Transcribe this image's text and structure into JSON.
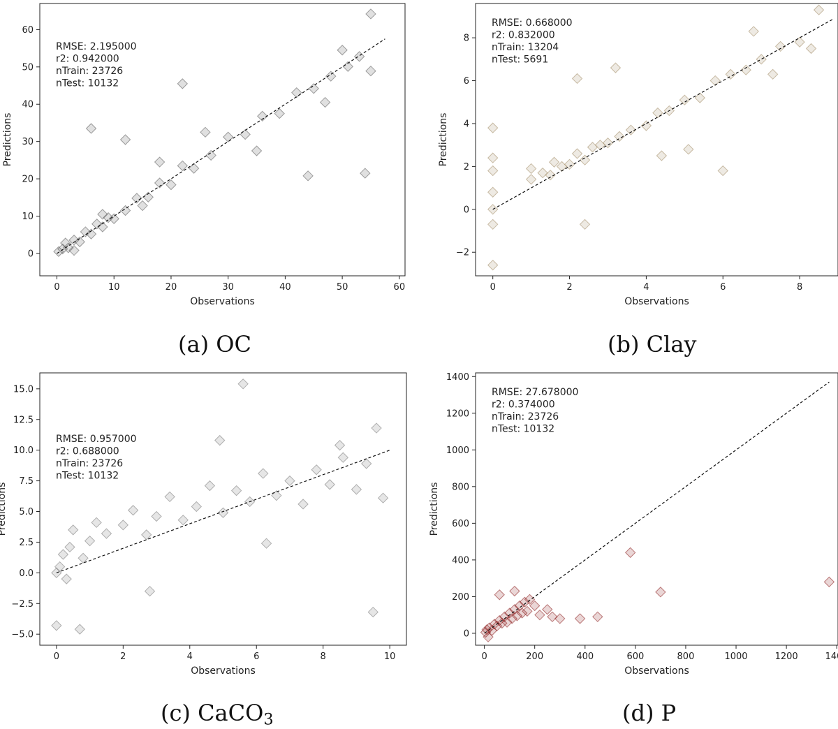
{
  "figure": {
    "captions": {
      "a": {
        "label": "(a) OC",
        "text": "(a) OC"
      },
      "b": {
        "label": "(b) Clay",
        "text": "(b) Clay"
      },
      "c": {
        "prefix": "(c) CaCO",
        "subscript": "3"
      },
      "d": {
        "label": "(d) P",
        "text": "(d) P"
      }
    }
  },
  "chart_data": [
    {
      "id": "a",
      "type": "scatter",
      "title": "",
      "xlabel": "Observations",
      "ylabel": "Predictions",
      "xlim": [
        -3,
        61
      ],
      "ylim": [
        -6,
        67
      ],
      "xticks": [
        0,
        10,
        20,
        30,
        40,
        50,
        60
      ],
      "yticks": [
        0,
        10,
        20,
        30,
        40,
        50,
        60
      ],
      "reference_line": {
        "from": [
          0,
          0
        ],
        "to": [
          57.5,
          57.5
        ],
        "style": "dashed"
      },
      "stats": [
        "RMSE: 2.195000",
        "r2: 0.942000",
        "nTrain: 23726",
        "nTest: 10132"
      ],
      "marker": "diamond",
      "marker_color": "#555555",
      "points": [
        [
          0.3,
          0.5
        ],
        [
          1,
          1.2
        ],
        [
          2,
          1.5
        ],
        [
          3,
          3.6
        ],
        [
          4,
          3.1
        ],
        [
          5,
          5.8
        ],
        [
          6,
          5.2
        ],
        [
          7,
          7.9
        ],
        [
          8,
          7.1
        ],
        [
          9,
          9.6
        ],
        [
          10,
          9.3
        ],
        [
          12,
          11.5
        ],
        [
          14,
          14.8
        ],
        [
          16,
          15.1
        ],
        [
          18,
          18.9
        ],
        [
          20,
          18.4
        ],
        [
          22,
          23.5
        ],
        [
          24,
          22.8
        ],
        [
          27,
          26.3
        ],
        [
          30,
          31.2
        ],
        [
          33,
          31.9
        ],
        [
          36,
          36.8
        ],
        [
          39,
          37.5
        ],
        [
          42,
          43.1
        ],
        [
          45,
          44.2
        ],
        [
          48,
          47.5
        ],
        [
          51,
          50.1
        ],
        [
          53,
          52.8
        ],
        [
          55,
          48.9
        ],
        [
          55,
          64.2
        ],
        [
          54,
          21.5
        ],
        [
          44,
          20.8
        ],
        [
          12,
          30.5
        ],
        [
          6,
          33.5
        ],
        [
          22,
          45.5
        ],
        [
          3,
          0.8
        ],
        [
          1.5,
          2.8
        ],
        [
          8,
          10.5
        ],
        [
          15,
          12.8
        ],
        [
          35,
          27.5
        ],
        [
          47,
          40.5
        ],
        [
          50,
          54.5
        ],
        [
          26,
          32.5
        ],
        [
          18,
          24.5
        ]
      ]
    },
    {
      "id": "b",
      "type": "scatter",
      "title": "",
      "xlabel": "Observations",
      "ylabel": "Predictions",
      "xlim": [
        -0.45,
        9.0
      ],
      "ylim": [
        -3.1,
        9.6
      ],
      "xticks": [
        0,
        2,
        4,
        6,
        8
      ],
      "yticks": [
        -2,
        0,
        2,
        4,
        6,
        8
      ],
      "reference_line": {
        "from": [
          0,
          0
        ],
        "to": [
          8.9,
          8.9
        ],
        "style": "dashed"
      },
      "stats": [
        "RMSE: 0.668000",
        "r2: 0.832000",
        "nTrain: 13204",
        "nTest: 5691"
      ],
      "marker": "diamond",
      "marker_color": "#a08a64",
      "points": [
        [
          0,
          0
        ],
        [
          0,
          0.8
        ],
        [
          0,
          -0.7
        ],
        [
          0,
          1.8
        ],
        [
          0,
          3.8
        ],
        [
          0,
          -2.6
        ],
        [
          0,
          2.4
        ],
        [
          1,
          1.4
        ],
        [
          1,
          1.9
        ],
        [
          1.3,
          1.7
        ],
        [
          1.5,
          1.6
        ],
        [
          1.6,
          2.2
        ],
        [
          1.8,
          2.0
        ],
        [
          2,
          2.1
        ],
        [
          2.2,
          2.6
        ],
        [
          2.4,
          2.3
        ],
        [
          2.6,
          2.9
        ],
        [
          2.8,
          3.0
        ],
        [
          3,
          3.1
        ],
        [
          3.3,
          3.4
        ],
        [
          3.6,
          3.7
        ],
        [
          4,
          3.9
        ],
        [
          4.3,
          4.5
        ],
        [
          4.6,
          4.6
        ],
        [
          5,
          5.1
        ],
        [
          5.4,
          5.2
        ],
        [
          5.8,
          6.0
        ],
        [
          6.2,
          6.3
        ],
        [
          6.6,
          6.5
        ],
        [
          7,
          7.0
        ],
        [
          7.5,
          7.6
        ],
        [
          8,
          7.8
        ],
        [
          8.5,
          9.3
        ],
        [
          8.3,
          7.5
        ],
        [
          2.2,
          6.1
        ],
        [
          3.2,
          6.6
        ],
        [
          6,
          1.8
        ],
        [
          5.1,
          2.8
        ],
        [
          2.4,
          -0.7
        ],
        [
          7.3,
          6.3
        ],
        [
          4.4,
          2.5
        ],
        [
          6.8,
          8.3
        ]
      ]
    },
    {
      "id": "c",
      "type": "scatter",
      "title": "",
      "xlabel": "Observations",
      "ylabel": "Predictions",
      "xlim": [
        -0.5,
        10.5
      ],
      "ylim": [
        -5.9,
        16.3
      ],
      "xticks": [
        0,
        2,
        4,
        6,
        8,
        10
      ],
      "yticks": [
        -5.0,
        -2.5,
        0.0,
        2.5,
        5.0,
        7.5,
        10.0,
        12.5,
        15.0
      ],
      "reference_line": {
        "from": [
          0,
          0
        ],
        "to": [
          10,
          10
        ],
        "style": "dashed"
      },
      "stats": [
        "RMSE: 0.957000",
        "r2: 0.688000",
        "nTrain: 23726",
        "nTest: 10132"
      ],
      "marker": "diamond",
      "marker_color": "#777777",
      "points": [
        [
          0,
          0
        ],
        [
          0.1,
          0.5
        ],
        [
          0.2,
          1.5
        ],
        [
          0.3,
          -0.5
        ],
        [
          0.4,
          2.1
        ],
        [
          0.5,
          3.5
        ],
        [
          0.8,
          1.2
        ],
        [
          1,
          2.6
        ],
        [
          1.2,
          4.1
        ],
        [
          1.5,
          3.2
        ],
        [
          2,
          3.9
        ],
        [
          2.3,
          5.1
        ],
        [
          2.7,
          3.1
        ],
        [
          3,
          4.6
        ],
        [
          3.4,
          6.2
        ],
        [
          3.8,
          4.3
        ],
        [
          4.2,
          5.4
        ],
        [
          4.6,
          7.1
        ],
        [
          5,
          4.9
        ],
        [
          5.4,
          6.7
        ],
        [
          5.8,
          5.8
        ],
        [
          6.2,
          8.1
        ],
        [
          6.6,
          6.3
        ],
        [
          7,
          7.5
        ],
        [
          7.4,
          5.6
        ],
        [
          7.8,
          8.4
        ],
        [
          8.2,
          7.2
        ],
        [
          8.6,
          9.4
        ],
        [
          9,
          6.8
        ],
        [
          9.3,
          8.9
        ],
        [
          9.6,
          11.8
        ],
        [
          9.8,
          6.1
        ],
        [
          5.6,
          15.4
        ],
        [
          0.7,
          -4.6
        ],
        [
          0,
          -4.3
        ],
        [
          9.5,
          -3.2
        ],
        [
          4.9,
          10.8
        ],
        [
          2.8,
          -1.5
        ],
        [
          6.3,
          2.4
        ],
        [
          8.5,
          10.4
        ]
      ]
    },
    {
      "id": "d",
      "type": "scatter",
      "title": "",
      "xlabel": "Observations",
      "ylabel": "Predictions",
      "xlim": [
        -35,
        1405
      ],
      "ylim": [
        -65,
        1420
      ],
      "xticks": [
        0,
        200,
        400,
        600,
        800,
        1000,
        1200,
        1400
      ],
      "yticks": [
        0,
        200,
        400,
        600,
        800,
        1000,
        1200,
        1400
      ],
      "reference_line": {
        "from": [
          0,
          0
        ],
        "to": [
          1370,
          1370
        ],
        "style": "dashed"
      },
      "stats": [
        "RMSE: 27.678000",
        "r2: 0.374000",
        "nTrain: 23726",
        "nTest: 10132"
      ],
      "marker": "diamond",
      "marker_color": "#8b1a1a",
      "points": [
        [
          5,
          5
        ],
        [
          10,
          20
        ],
        [
          20,
          30
        ],
        [
          30,
          15
        ],
        [
          40,
          50
        ],
        [
          50,
          40
        ],
        [
          60,
          70
        ],
        [
          70,
          55
        ],
        [
          80,
          90
        ],
        [
          90,
          60
        ],
        [
          100,
          110
        ],
        [
          110,
          80
        ],
        [
          120,
          130
        ],
        [
          130,
          95
        ],
        [
          140,
          150
        ],
        [
          150,
          110
        ],
        [
          160,
          170
        ],
        [
          170,
          120
        ],
        [
          180,
          185
        ],
        [
          200,
          150
        ],
        [
          220,
          100
        ],
        [
          250,
          130
        ],
        [
          270,
          90
        ],
        [
          300,
          80
        ],
        [
          380,
          80
        ],
        [
          450,
          90
        ],
        [
          580,
          440
        ],
        [
          700,
          225
        ],
        [
          1370,
          280
        ],
        [
          15,
          -20
        ],
        [
          60,
          210
        ],
        [
          120,
          230
        ]
      ]
    }
  ]
}
